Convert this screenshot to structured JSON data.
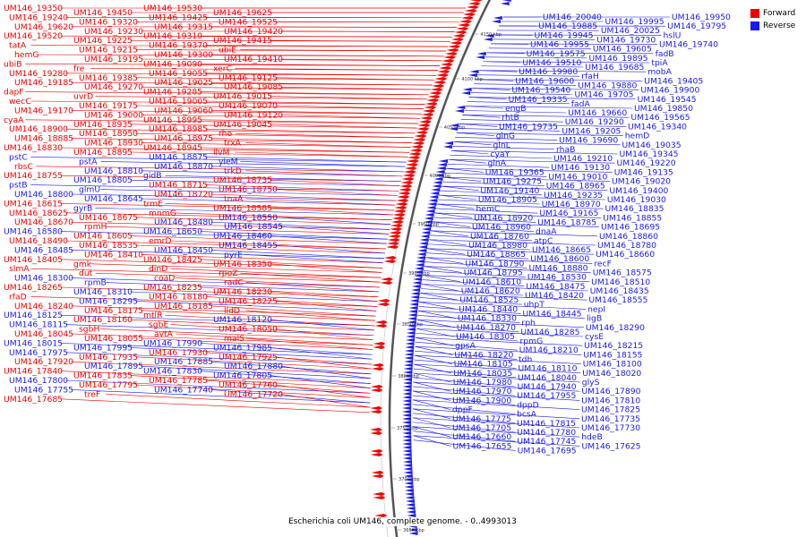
{
  "title": "Escherichia coli UM146, complete genome. - 0..4993013",
  "legend": [
    {
      "label": "Forward",
      "color": "#ee0000"
    },
    {
      "label": "Reverse",
      "color": "#1a1aee"
    }
  ],
  "colors": {
    "forward": "#ee0000",
    "reverse": "#1a1aee",
    "backbone": "#555555",
    "kbp": "#333333"
  },
  "kbp_ticks": [
    {
      "label": "4150 kbp"
    },
    {
      "label": "4100 kbp"
    },
    {
      "label": "4050 kbp"
    },
    {
      "label": "4000 kbp"
    },
    {
      "label": "3950 kbp"
    },
    {
      "label": "3900 kbp"
    },
    {
      "label": "3850 kbp"
    },
    {
      "label": "3800 kbp"
    },
    {
      "label": "3750 kbp"
    },
    {
      "label": "3700 kbp"
    },
    {
      "label": "3650 kbp"
    }
  ],
  "forward_labels": [
    "UM146_19350",
    "UM146_19450",
    "UM146_19530",
    "UM146_19625",
    "UM146_19240",
    "UM146_19320",
    "UM146_19425",
    "UM146_19525",
    "UM146_19620",
    "UM146_19230",
    "UM146_19315",
    "UM146_19420",
    "UM146_19520",
    "UM146_19225",
    "UM146_19310",
    "UM146_19415",
    "tatA",
    "UM146_19215",
    "UM146_19370",
    "ubiE",
    "hemG",
    "UM146_19195",
    "UM146_19300",
    "UM146_19410",
    "ubiB",
    "fre",
    "UM146_19090",
    "xerC",
    "UM146_19280",
    "UM146_19385",
    "UM146_19055",
    "UM146_19125",
    "UM146_19185",
    "UM146_19270",
    "UM146_19025",
    "UM146_19085",
    "dapF",
    "uvrD",
    "UM146_19285",
    "UM146_19015",
    "wecC",
    "UM146_19175",
    "UM146_19005",
    "UM146_19070",
    "UM146_19170",
    "UM146_19000",
    "UM146_19060",
    "UM146_19120",
    "cyaA",
    "UM146_18935",
    "UM146_18995",
    "UM146_19045",
    "UM146_18900",
    "UM146_18950",
    "UM146_18985",
    "rho",
    "UM146_18885",
    "UM146_18930",
    "UM146_18975",
    "trxA",
    "UM146_18830",
    "UM146_18895",
    "UM146_18945",
    "ilvM",
    "rbsC",
    "trkD",
    "UM146_18755",
    "UM146_18735",
    "UM146_18715",
    "UM146_18750",
    "UM146_18720",
    "tnaA",
    "trmE",
    "UM146_18615",
    "UM146_18675",
    "UM146_18670",
    "mnmG",
    "UM146_18585",
    "UM146_18625",
    "rpmH",
    "UM146_18605",
    "UM146_18650",
    "emrD",
    "UM146_18490",
    "UM146_18535",
    "UM146_18410",
    "UM146_18405",
    "gmk",
    "UM146_18425",
    "UM146_18350",
    "slmA",
    "dut",
    "dinD",
    "rpoZ",
    "UM146_18265",
    "coaD",
    "radC",
    "UM146_18235",
    "UM146_18230",
    "rfaD",
    "UM146_18180",
    "UM146_18225",
    "UM146_18240",
    "UM146_18175",
    "UM146_18185",
    "lldD",
    "UM146_18160",
    "mtlR",
    "sgbH",
    "sgbE",
    "UM146_18050",
    "UM146_18045",
    "UM146_18055",
    "avtA",
    "malS",
    "UM146_17930",
    "UM146_17925",
    "UM146_17920",
    "UM146_17935",
    "UM146_17840",
    "UM146_17835",
    "UM146_17785",
    "UM146_17760",
    "UM146_17720",
    "UM146_17685"
  ],
  "reverse_labels": [
    "UM146_20040",
    "UM146_19995",
    "UM146_19950",
    "UM146_19885",
    "UM146_20025",
    "UM146_19795",
    "UM146_19945",
    "UM146_19730",
    "hslU",
    "UM146_19955",
    "UM146_19605",
    "UM146_19740",
    "UM146_19575",
    "UM146_19895",
    "fadB",
    "UM146_19510",
    "UM146_19685",
    "tpiA",
    "UM146_19980",
    "rfaH",
    "mobA",
    "UM146_19600",
    "UM146_19880",
    "UM146_19405",
    "UM146_19540",
    "UM146_19705",
    "UM146_19900",
    "UM146_19335",
    "fadA",
    "UM146_19545",
    "engB",
    "UM146_19660",
    "UM146_19850",
    "rhtB",
    "UM146_19290",
    "UM146_19565",
    "UM146_19735",
    "UM146_19205",
    "UM146_19340",
    "glnG",
    "UM146_19690",
    "hemD",
    "glnL",
    "rhaB",
    "UM146_19035",
    "cyaY",
    "UM146_19210",
    "UM146_19345",
    "glnA",
    "UM146_19130",
    "UM146_19220",
    "UM146_19365",
    "UM146_19010",
    "UM146_19135",
    "UM146_19275",
    "UM146_18965",
    "UM146_19020",
    "UM146_19140",
    "UM146_19235",
    "UM146_19400",
    "UM146_18905",
    "UM146_18970",
    "UM146_19030",
    "hemC",
    "UM146_19165",
    "UM146_18835",
    "UM146_18920",
    "UM146_18785",
    "UM146_18855",
    "UM146_18960",
    "dnaA",
    "UM146_18695",
    "UM146_18760",
    "atpC",
    "UM146_18860",
    "UM146_18980",
    "UM146_18665",
    "UM146_18780",
    "UM146_18865",
    "UM146_18600",
    "UM146_18660",
    "UM146_18790",
    "UM146_18880",
    "recF",
    "UM146_18795",
    "UM146_18530",
    "UM146_18575",
    "UM146_18610",
    "UM146_18475",
    "UM146_18510",
    "UM146_18620",
    "UM146_18420",
    "UM146_18435",
    "UM146_18525",
    "uhpT",
    "UM146_18555",
    "UM146_18440",
    "UM146_18445",
    "nepI",
    "UM146_18330",
    "rph",
    "ligB",
    "UM146_18270",
    "UM146_18285",
    "UM146_18290",
    "UM146_18305",
    "rpmG",
    "cysE",
    "gpsA",
    "UM146_18210",
    "UM146_18215",
    "UM146_18220",
    "tdh",
    "UM146_18155",
    "UM146_18105",
    "UM146_18110",
    "UM146_18100",
    "UM146_18035",
    "UM146_18040",
    "UM146_18020",
    "UM146_17980",
    "UM146_17940",
    "glyS",
    "UM146_17970",
    "UM146_17955",
    "UM146_17890",
    "UM146_17900",
    "dppD",
    "UM146_17810",
    "dppF",
    "bcsA",
    "UM146_17825",
    "UM146_17775",
    "UM146_17815",
    "UM146_17735",
    "UM146_17705",
    "UM146_17780",
    "UM146_17730",
    "UM146_17660",
    "UM146_17745",
    "hdeB",
    "UM146_17655",
    "UM146_17695",
    "UM146_17625"
  ],
  "left_labels": [
    "UM146_19350",
    "UM146_19450",
    "UM146_19530",
    "UM146_19625",
    "UM146_19240",
    "UM146_19320",
    "UM146_19425",
    "UM146_19525",
    "UM146_19620",
    "UM146_19230",
    "UM146_19315",
    "UM146_19420",
    "UM146_19520",
    "UM146_19225",
    "UM146_19310",
    "UM146_19415",
    "tatA",
    "UM146_19215",
    "UM146_19370",
    "ubiE",
    "hemG",
    "UM146_19195",
    "UM146_19300",
    "UM146_19410",
    "ubiB",
    "fre",
    "UM146_19090",
    "xerC",
    "UM146_19280",
    "UM146_19385",
    "UM146_19055",
    "UM146_19125",
    "UM146_19185",
    "UM146_19270",
    "UM146_19025",
    "UM146_19085",
    "dapF",
    "uvrD",
    "UM146_19285",
    "UM146_19015",
    "wecC",
    "UM146_19175",
    "UM146_19005",
    "UM146_19070",
    "UM146_19170",
    "UM146_19000",
    "UM146_19060",
    "UM146_19120",
    "cyaA",
    "UM146_18935",
    "UM146_18995",
    "UM146_19045",
    "UM146_18900",
    "UM146_18950",
    "UM146_18985",
    "rho",
    "UM146_18885",
    "UM146_18930",
    "UM146_18975",
    "trxA",
    "UM146_18830",
    "UM146_18895",
    "UM146_18945",
    "ilvM",
    "pstC",
    "pstA",
    "UM146_18875",
    "yieM",
    "rbsC",
    "UM146_18810",
    "UM146_18870",
    "trkD",
    "UM146_18755",
    "UM146_18805",
    "gidB",
    "UM146_18735",
    "pstB",
    "glmU",
    "UM146_18715",
    "UM146_18750",
    "UM146_18800",
    "UM146_18645",
    "UM146_18720",
    "tnaA",
    "UM146_18615",
    "gyrB",
    "trmE",
    "UM146_18585",
    "UM146_18625",
    "UM146_18675",
    "mnmG",
    "UM146_18550",
    "UM146_18670",
    "rpmH",
    "UM146_18480",
    "UM146_18545",
    "UM146_18580",
    "UM146_18605",
    "UM146_18650",
    "UM146_18460",
    "UM146_18490",
    "UM146_18535",
    "emrD",
    "UM146_18455",
    "UM146_18485",
    "UM146_18410",
    "UM146_18450",
    "pyrE",
    "UM146_18405",
    "gmk",
    "UM146_18425",
    "UM146_18350",
    "slmA",
    "dut",
    "dinD",
    "rpoZ",
    "UM146_18300",
    "rpmB",
    "coaD",
    "radC",
    "UM146_18265",
    "UM146_18310",
    "UM146_18235",
    "UM146_18230",
    "rfaD",
    "UM146_18295",
    "UM146_18180",
    "UM146_18225",
    "UM146_18240",
    "UM146_18175",
    "UM146_18185",
    "lldD",
    "UM146_18125",
    "UM146_18160",
    "mtlR",
    "UM146_18120",
    "UM146_18115",
    "sgbH",
    "sgbE",
    "UM146_18050",
    "UM146_18045",
    "UM146_18055",
    "avtA",
    "malS",
    "UM146_18015",
    "UM146_17995",
    "UM146_17990",
    "UM146_17985",
    "UM146_17975",
    "UM146_17935",
    "UM146_17930",
    "UM146_17925",
    "UM146_17920",
    "UM146_17895",
    "UM146_17885",
    "UM146_17880",
    "UM146_17840",
    "UM146_17835",
    "UM146_17830",
    "UM146_17805",
    "UM146_17800",
    "UM146_17795",
    "UM146_17785",
    "UM146_17760",
    "UM146_17755",
    "treF",
    "UM146_17740",
    "UM146_17720",
    "UM146_17685"
  ]
}
